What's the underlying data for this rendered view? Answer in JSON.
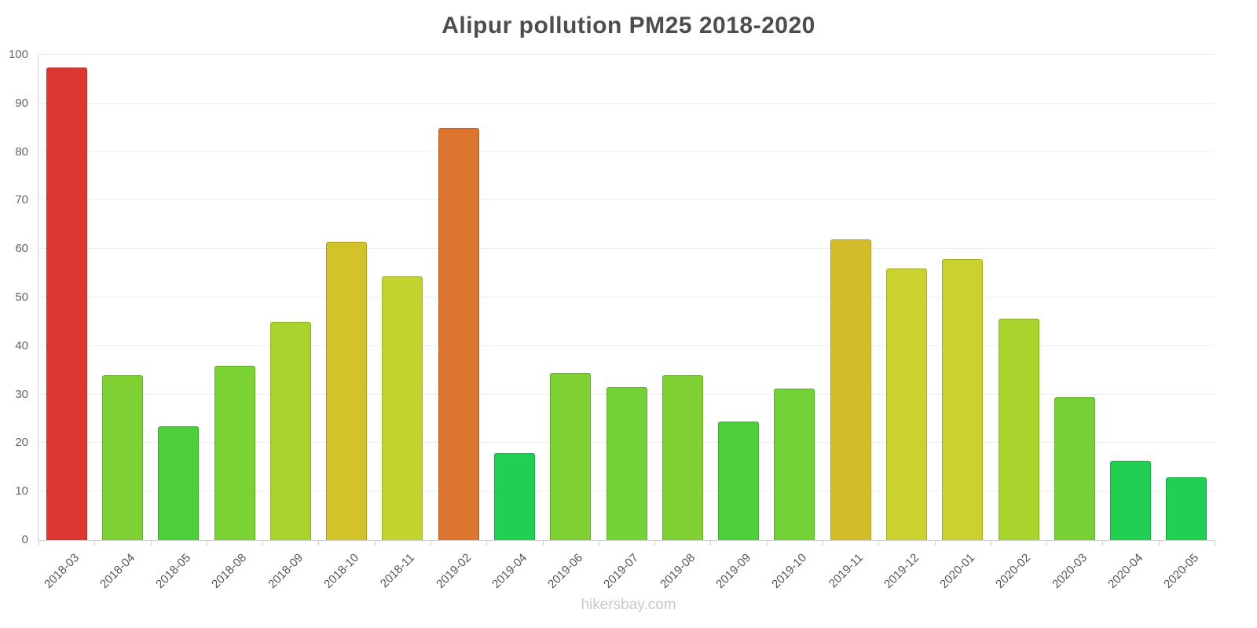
{
  "watermark": "hikersbay.com",
  "chart_data": {
    "type": "bar",
    "title": "Alipur pollution PM25 2018-2020",
    "xlabel": "",
    "ylabel": "",
    "ylim": [
      0,
      100
    ],
    "yticks": [
      0,
      10,
      20,
      30,
      40,
      50,
      60,
      70,
      80,
      90,
      100
    ],
    "grid": true,
    "legend": "none",
    "categories": [
      "2018-03",
      "2018-04",
      "2018-05",
      "2018-08",
      "2018-09",
      "2018-10",
      "2018-11",
      "2019-02",
      "2019-04",
      "2019-06",
      "2019-07",
      "2019-08",
      "2019-09",
      "2019-10",
      "2019-11",
      "2019-12",
      "2020-01",
      "2020-02",
      "2020-03",
      "2020-04",
      "2020-05"
    ],
    "values": [
      97.4,
      34,
      23.5,
      36,
      45,
      61.5,
      54.3,
      85,
      18,
      34.5,
      31.5,
      34,
      24.5,
      31.2,
      62,
      56,
      58,
      45.6,
      29.5,
      16.4,
      13
    ],
    "colors": [
      "#db3832",
      "#7fd133",
      "#4ecf3c",
      "#7cd134",
      "#a9d42e",
      "#d2c32a",
      "#c3d32f",
      "#dc7530",
      "#21d053",
      "#7fd133",
      "#74d136",
      "#7fd133",
      "#4ecf3c",
      "#72d135",
      "#d2bc29",
      "#c9d22e",
      "#c9d22e",
      "#a9d42e",
      "#77d134",
      "#21d053",
      "#21d053"
    ]
  }
}
